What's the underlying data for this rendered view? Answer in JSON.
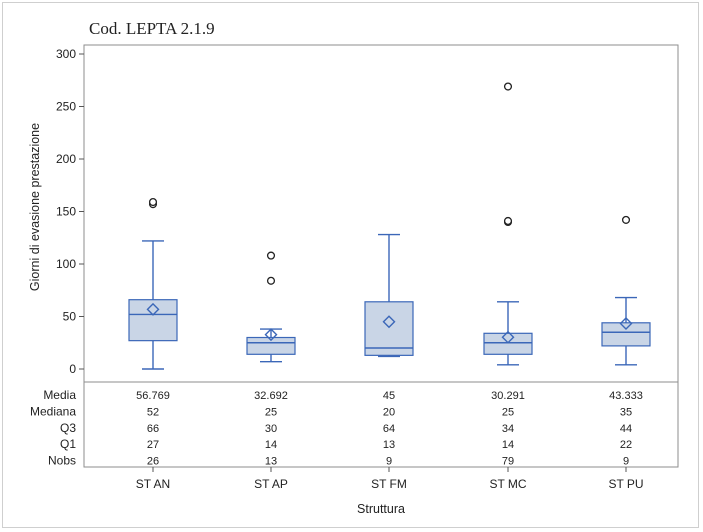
{
  "chart_data": {
    "type": "boxplot",
    "title": "Cod. LEPTA 2.1.9",
    "xlabel": "Struttura",
    "ylabel": "Giorni di evasione prestazione",
    "ylim": [
      0,
      300
    ],
    "yticks": [
      0,
      50,
      100,
      150,
      200,
      250,
      300
    ],
    "categories": [
      "ST AN",
      "ST AP",
      "ST FM",
      "ST MC",
      "ST PU"
    ],
    "colors": {
      "box_fill": "#c9d5e6",
      "box_stroke": "#3b67b8",
      "outlier": "#222222"
    },
    "boxes": [
      {
        "category": "ST AN",
        "whisker_low": 0,
        "q1": 27,
        "median": 52,
        "q3": 66,
        "whisker_high": 122,
        "mean": 56.769,
        "outliers": [
          157,
          159
        ]
      },
      {
        "category": "ST AP",
        "whisker_low": 7,
        "q1": 14,
        "median": 25,
        "q3": 30,
        "whisker_high": 38,
        "mean": 32.692,
        "outliers": [
          84,
          108
        ]
      },
      {
        "category": "ST FM",
        "whisker_low": 12,
        "q1": 13,
        "median": 20,
        "q3": 64,
        "whisker_high": 128,
        "mean": 45,
        "outliers": []
      },
      {
        "category": "ST MC",
        "whisker_low": 4,
        "q1": 14,
        "median": 25,
        "q3": 34,
        "whisker_high": 64,
        "mean": 30.291,
        "outliers": [
          140,
          141,
          269
        ]
      },
      {
        "category": "ST PU",
        "whisker_low": 4,
        "q1": 22,
        "median": 35,
        "q3": 44,
        "whisker_high": 68,
        "mean": 43.333,
        "outliers": [
          142
        ]
      }
    ],
    "stats_table": {
      "rows": [
        {
          "label": "Media",
          "values": [
            "56.769",
            "32.692",
            "45",
            "30.291",
            "43.333"
          ]
        },
        {
          "label": "Mediana",
          "values": [
            "52",
            "25",
            "20",
            "25",
            "35"
          ]
        },
        {
          "label": "Q3",
          "values": [
            "66",
            "30",
            "64",
            "34",
            "44"
          ]
        },
        {
          "label": "Q1",
          "values": [
            "27",
            "14",
            "13",
            "14",
            "22"
          ]
        },
        {
          "label": "Nobs",
          "values": [
            "26",
            "13",
            "9",
            "79",
            "9"
          ]
        }
      ]
    }
  }
}
